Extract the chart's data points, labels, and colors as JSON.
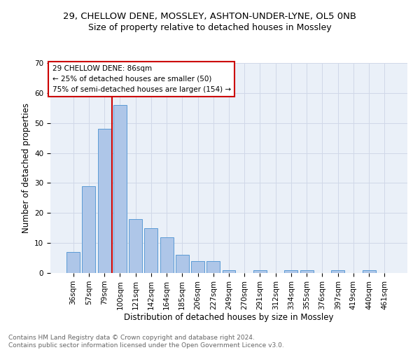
{
  "title1": "29, CHELLOW DENE, MOSSLEY, ASHTON-UNDER-LYNE, OL5 0NB",
  "title2": "Size of property relative to detached houses in Mossley",
  "xlabel": "Distribution of detached houses by size in Mossley",
  "ylabel": "Number of detached properties",
  "categories": [
    "36sqm",
    "57sqm",
    "79sqm",
    "100sqm",
    "121sqm",
    "142sqm",
    "164sqm",
    "185sqm",
    "206sqm",
    "227sqm",
    "249sqm",
    "270sqm",
    "291sqm",
    "312sqm",
    "334sqm",
    "355sqm",
    "376sqm",
    "397sqm",
    "419sqm",
    "440sqm",
    "461sqm"
  ],
  "values": [
    7,
    29,
    48,
    56,
    18,
    15,
    12,
    6,
    4,
    4,
    1,
    0,
    1,
    0,
    1,
    1,
    0,
    1,
    0,
    1,
    0
  ],
  "bar_color": "#aec6e8",
  "bar_edge_color": "#5b9bd5",
  "vline_color": "#cc0000",
  "annotation_lines": [
    "29 CHELLOW DENE: 86sqm",
    "← 25% of detached houses are smaller (50)",
    "75% of semi-detached houses are larger (154) →"
  ],
  "annotation_box_color": "#cc0000",
  "ylim": [
    0,
    70
  ],
  "yticks": [
    0,
    10,
    20,
    30,
    40,
    50,
    60,
    70
  ],
  "grid_color": "#d0d8e8",
  "bg_color": "#eaf0f8",
  "footer": "Contains HM Land Registry data © Crown copyright and database right 2024.\nContains public sector information licensed under the Open Government Licence v3.0.",
  "title1_fontsize": 9.5,
  "title2_fontsize": 9,
  "xlabel_fontsize": 8.5,
  "ylabel_fontsize": 8.5,
  "tick_fontsize": 7.5,
  "footer_fontsize": 6.5,
  "ann_fontsize": 7.5
}
